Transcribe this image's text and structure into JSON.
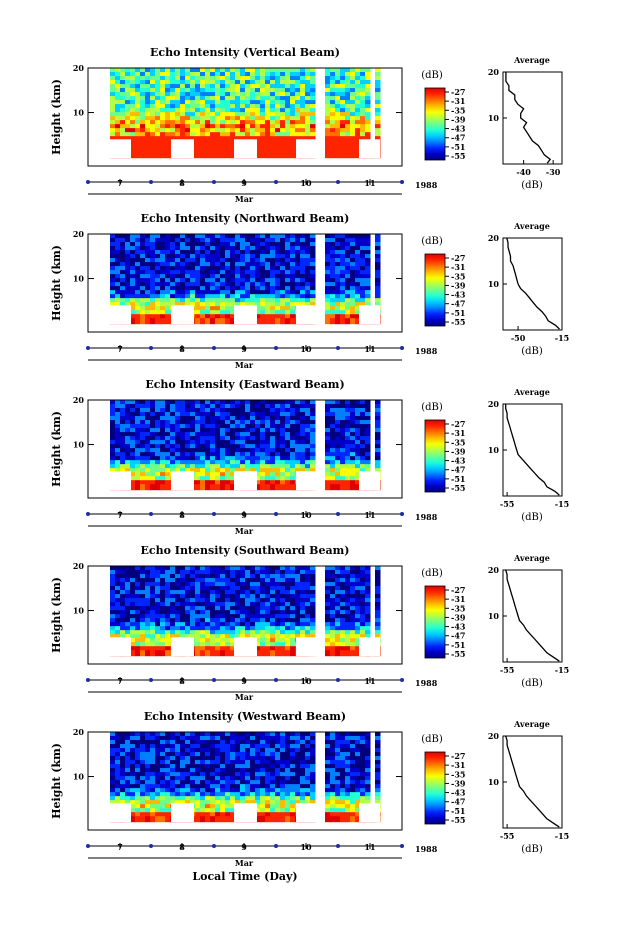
{
  "chart_data": {
    "type": "heatmap",
    "panels": [
      {
        "id": "vertical",
        "title": "Echo Intensity (Vertical Beam)",
        "avg_xlim": [
          -47,
          -27
        ],
        "avg_ticks": [
          {
            "v": -40,
            "t": "-40"
          },
          {
            "v": -30,
            "t": "-30"
          }
        ],
        "avg_profile": [
          [
            0.2,
            -32
          ],
          [
            1,
            -31
          ],
          [
            2,
            -33
          ],
          [
            3,
            -34
          ],
          [
            4,
            -35
          ],
          [
            5,
            -37
          ],
          [
            6,
            -38
          ],
          [
            7,
            -39
          ],
          [
            8,
            -40
          ],
          [
            9,
            -39
          ],
          [
            10,
            -41
          ],
          [
            11,
            -41
          ],
          [
            12,
            -40
          ],
          [
            13,
            -42
          ],
          [
            14,
            -43
          ],
          [
            15,
            -43
          ],
          [
            16,
            -45
          ],
          [
            17,
            -45
          ],
          [
            18,
            -46
          ],
          [
            19,
            -46
          ],
          [
            20,
            -46
          ]
        ]
      },
      {
        "id": "northward",
        "title": "Echo Intensity (Northward Beam)",
        "avg_xlim": [
          -62,
          -15
        ],
        "avg_ticks": [
          {
            "v": -50,
            "t": "-50"
          },
          {
            "v": -15,
            "t": "-15"
          }
        ],
        "avg_profile": [
          [
            0.2,
            -17
          ],
          [
            1,
            -20
          ],
          [
            2,
            -26
          ],
          [
            3,
            -28
          ],
          [
            4,
            -31
          ],
          [
            5,
            -35
          ],
          [
            6,
            -38
          ],
          [
            7,
            -41
          ],
          [
            8,
            -44
          ],
          [
            9,
            -48
          ],
          [
            10,
            -50
          ],
          [
            11,
            -51
          ],
          [
            12,
            -52
          ],
          [
            13,
            -53
          ],
          [
            14,
            -54
          ],
          [
            15,
            -56
          ],
          [
            16,
            -56
          ],
          [
            17,
            -57
          ],
          [
            18,
            -58
          ],
          [
            19,
            -58
          ],
          [
            20,
            -59
          ]
        ]
      },
      {
        "id": "eastward",
        "title": "Echo Intensity (Eastward Beam)",
        "avg_xlim": [
          -58,
          -15
        ],
        "avg_ticks": [
          {
            "v": -55,
            "t": "-55"
          },
          {
            "v": -15,
            "t": "-15"
          }
        ],
        "avg_profile": [
          [
            0.2,
            -17
          ],
          [
            1,
            -20
          ],
          [
            2,
            -26
          ],
          [
            3,
            -28
          ],
          [
            4,
            -32
          ],
          [
            5,
            -35
          ],
          [
            6,
            -38
          ],
          [
            7,
            -41
          ],
          [
            8,
            -44
          ],
          [
            9,
            -47
          ],
          [
            10,
            -48
          ],
          [
            11,
            -49
          ],
          [
            12,
            -50
          ],
          [
            13,
            -51
          ],
          [
            14,
            -52
          ],
          [
            15,
            -53
          ],
          [
            16,
            -54
          ],
          [
            17,
            -55
          ],
          [
            18,
            -55
          ],
          [
            19,
            -56
          ],
          [
            20,
            -56
          ]
        ]
      },
      {
        "id": "southward",
        "title": "Echo Intensity (Southward Beam)",
        "avg_xlim": [
          -58,
          -15
        ],
        "avg_ticks": [
          {
            "v": -55,
            "t": "-55"
          },
          {
            "v": -15,
            "t": "-15"
          }
        ],
        "avg_profile": [
          [
            0.2,
            -17
          ],
          [
            1,
            -21
          ],
          [
            2,
            -26
          ],
          [
            3,
            -29
          ],
          [
            4,
            -32
          ],
          [
            5,
            -35
          ],
          [
            6,
            -38
          ],
          [
            7,
            -41
          ],
          [
            8,
            -43
          ],
          [
            9,
            -46
          ],
          [
            10,
            -47
          ],
          [
            11,
            -48
          ],
          [
            12,
            -49
          ],
          [
            13,
            -50
          ],
          [
            14,
            -51
          ],
          [
            15,
            -52
          ],
          [
            16,
            -53
          ],
          [
            17,
            -54
          ],
          [
            18,
            -55
          ],
          [
            19,
            -55
          ],
          [
            20,
            -56
          ]
        ]
      },
      {
        "id": "westward",
        "title": "Echo Intensity (Westward Beam)",
        "avg_xlim": [
          -58,
          -15
        ],
        "avg_ticks": [
          {
            "v": -55,
            "t": "-55"
          },
          {
            "v": -15,
            "t": "-15"
          }
        ],
        "avg_profile": [
          [
            0.2,
            -17
          ],
          [
            1,
            -21
          ],
          [
            2,
            -26
          ],
          [
            3,
            -29
          ],
          [
            4,
            -32
          ],
          [
            5,
            -35
          ],
          [
            6,
            -38
          ],
          [
            7,
            -41
          ],
          [
            8,
            -43
          ],
          [
            9,
            -46
          ],
          [
            10,
            -47
          ],
          [
            11,
            -48
          ],
          [
            12,
            -49
          ],
          [
            13,
            -50
          ],
          [
            14,
            -51
          ],
          [
            15,
            -52
          ],
          [
            16,
            -53
          ],
          [
            17,
            -54
          ],
          [
            18,
            -55
          ],
          [
            19,
            -55
          ],
          [
            20,
            -56
          ]
        ]
      }
    ],
    "ylabel": "Height (km)",
    "y_ticks": [
      "10",
      "20"
    ],
    "ylim_km": [
      0,
      20
    ],
    "day_ticks": [
      "7",
      "8",
      "9",
      "10",
      "11"
    ],
    "month_label": "Mar",
    "year_label": "1988",
    "xlabel": "Local Time (Day)",
    "colorbar": {
      "unit": "(dB)",
      "levels": [
        "-27",
        "-31",
        "-35",
        "-39",
        "-43",
        "-47",
        "-51",
        "-55"
      ],
      "colors": [
        "#00007f",
        "#0000c8",
        "#0026ff",
        "#0080ff",
        "#00cfff",
        "#23ffd4",
        "#6cff8b",
        "#b4ff43",
        "#f8ff00",
        "#ffba00",
        "#ff7000",
        "#ff2400",
        "#e00000"
      ]
    },
    "avg_title": "Average",
    "avg_xlabel": "(dB)"
  }
}
